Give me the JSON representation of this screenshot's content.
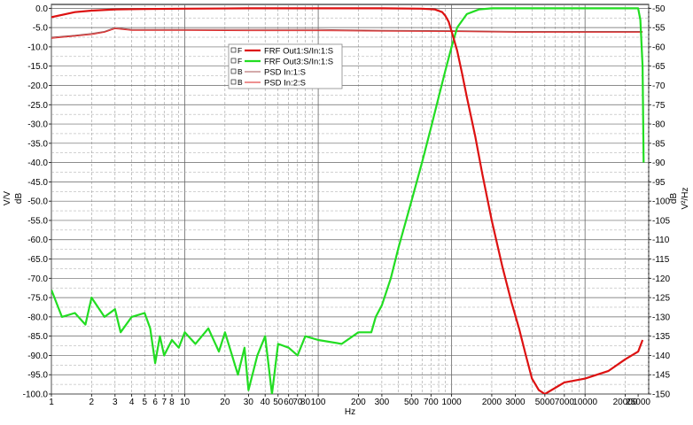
{
  "chart_data": {
    "type": "line",
    "x_scale": "log",
    "y_scale_left": "linear",
    "y_scale_right": "linear",
    "grid": true,
    "legend_position": "top-left inside plot",
    "xlabel": "Hz",
    "ylabel_left_units": "V/V",
    "ylabel_left_db": "dB",
    "ylabel_right_db": "dB",
    "ylabel_right_units": "V²/Hz",
    "xlim": [
      1,
      30000
    ],
    "ylim_left": [
      -100,
      1
    ],
    "ylim_right": [
      -150,
      -49
    ],
    "x_ticks": [
      1,
      2,
      3,
      4,
      5,
      6,
      7,
      8,
      10,
      20,
      30,
      40,
      50,
      60,
      70,
      80,
      100,
      200,
      300,
      500,
      700,
      1000,
      2000,
      3000,
      5000,
      7000,
      10000,
      20000,
      25000
    ],
    "x_tick_labels": [
      "1",
      "2",
      "3",
      "4",
      "5",
      "6",
      "7",
      "8",
      "10",
      "20",
      "30",
      "40",
      "50",
      "60",
      "70",
      "80",
      "100",
      "200",
      "300",
      "500",
      "700",
      "1000",
      "2000",
      "3000",
      "5000",
      "7000",
      "10000",
      "20000",
      "25000"
    ],
    "y_left_tick_labels": [
      "0.0",
      "-5.0",
      "-10.0",
      "-15.0",
      "-20.0",
      "-25.0",
      "-30.0",
      "-35.0",
      "-40.0",
      "-45.0",
      "-50.0",
      "-55.0",
      "-60.0",
      "-65.0",
      "-70.0",
      "-75.0",
      "-80.0",
      "-85.0",
      "-90.0",
      "-95.0",
      "-100.0"
    ],
    "y_right_tick_labels": [
      "-50",
      "-55",
      "-60",
      "-65",
      "-70",
      "-75",
      "-80",
      "-85",
      "-90",
      "-95",
      "-100",
      "-105",
      "-110",
      "-115",
      "-120",
      "-125",
      "-130",
      "-135",
      "-140",
      "-145",
      "-150"
    ],
    "legend": [
      {
        "flag": "F",
        "name": "FRF Out1:S/In:1:S",
        "color": "#dd1111",
        "style": "thick"
      },
      {
        "flag": "F",
        "name": "FRF Out3:S/In:1:S",
        "color": "#22dd22",
        "style": "thick"
      },
      {
        "flag": "B",
        "name": "PSD In:1:S",
        "color": "#aa5555",
        "style": "thin"
      },
      {
        "flag": "B",
        "name": "PSD In:2:S",
        "color": "#dd2222",
        "style": "thin"
      }
    ],
    "series": [
      {
        "name": "FRF Out1:S/In:1:S",
        "axis": "left",
        "color": "#dd1111",
        "points": [
          [
            1,
            -2.3
          ],
          [
            1.5,
            -1.0
          ],
          [
            2,
            -0.6
          ],
          [
            3,
            -0.3
          ],
          [
            5,
            -0.2
          ],
          [
            10,
            -0.1
          ],
          [
            30,
            0
          ],
          [
            100,
            0
          ],
          [
            300,
            0
          ],
          [
            600,
            -0.1
          ],
          [
            750,
            -0.3
          ],
          [
            850,
            -1.0
          ],
          [
            900,
            -2.0
          ],
          [
            950,
            -3.5
          ],
          [
            1000,
            -6.0
          ],
          [
            1100,
            -11
          ],
          [
            1200,
            -17
          ],
          [
            1300,
            -23
          ],
          [
            1500,
            -33
          ],
          [
            1700,
            -43
          ],
          [
            2000,
            -55
          ],
          [
            2400,
            -67
          ],
          [
            2800,
            -76
          ],
          [
            3200,
            -83
          ],
          [
            3600,
            -90
          ],
          [
            4000,
            -96
          ],
          [
            4500,
            -99
          ],
          [
            5000,
            -100
          ],
          [
            7000,
            -97
          ],
          [
            10000,
            -96
          ],
          [
            15000,
            -94
          ],
          [
            20000,
            -91
          ],
          [
            25000,
            -89
          ],
          [
            27000,
            -86
          ]
        ]
      },
      {
        "name": "FRF Out3:S/In:1:S",
        "axis": "left",
        "color": "#22dd22",
        "points": [
          [
            1,
            -73
          ],
          [
            1.2,
            -80
          ],
          [
            1.5,
            -79
          ],
          [
            1.8,
            -82
          ],
          [
            2,
            -75
          ],
          [
            2.5,
            -80
          ],
          [
            3,
            -78
          ],
          [
            3.3,
            -84
          ],
          [
            4,
            -80
          ],
          [
            5,
            -79
          ],
          [
            5.5,
            -83
          ],
          [
            6,
            -92
          ],
          [
            6.5,
            -85
          ],
          [
            7,
            -90
          ],
          [
            8,
            -86
          ],
          [
            9,
            -88
          ],
          [
            10,
            -84
          ],
          [
            12,
            -87
          ],
          [
            15,
            -83
          ],
          [
            18,
            -89
          ],
          [
            20,
            -84
          ],
          [
            25,
            -95
          ],
          [
            28,
            -88
          ],
          [
            30,
            -99
          ],
          [
            35,
            -90
          ],
          [
            40,
            -85
          ],
          [
            45,
            -100
          ],
          [
            50,
            -87
          ],
          [
            60,
            -88
          ],
          [
            70,
            -90
          ],
          [
            80,
            -85
          ],
          [
            100,
            -86
          ],
          [
            150,
            -87
          ],
          [
            200,
            -84
          ],
          [
            250,
            -84
          ],
          [
            270,
            -80
          ],
          [
            300,
            -77
          ],
          [
            350,
            -70
          ],
          [
            400,
            -62
          ],
          [
            500,
            -50
          ],
          [
            600,
            -40
          ],
          [
            700,
            -31
          ],
          [
            800,
            -23
          ],
          [
            900,
            -16
          ],
          [
            1000,
            -10
          ],
          [
            1100,
            -5
          ],
          [
            1300,
            -1.5
          ],
          [
            1600,
            -0.3
          ],
          [
            2000,
            0
          ],
          [
            5000,
            0
          ],
          [
            10000,
            0
          ],
          [
            20000,
            0
          ],
          [
            25000,
            0
          ],
          [
            26000,
            -3
          ],
          [
            27000,
            -15
          ],
          [
            27500,
            -40
          ]
        ]
      },
      {
        "name": "PSD In:1:S",
        "axis": "right",
        "color": "#aa5555",
        "points": [
          [
            1,
            -57.5
          ],
          [
            1.5,
            -57
          ],
          [
            2,
            -56.5
          ],
          [
            2.5,
            -56
          ],
          [
            3,
            -55
          ],
          [
            4,
            -55.5
          ],
          [
            5,
            -55.5
          ],
          [
            10,
            -55.5
          ],
          [
            30,
            -55.5
          ],
          [
            100,
            -55.5
          ],
          [
            300,
            -55.7
          ],
          [
            1000,
            -55.8
          ],
          [
            3000,
            -56
          ],
          [
            10000,
            -56
          ],
          [
            27000,
            -56
          ]
        ]
      },
      {
        "name": "PSD In:2:S",
        "axis": "right",
        "color": "#dd2222",
        "points": [
          [
            1,
            -57.8
          ],
          [
            1.5,
            -57.2
          ],
          [
            2,
            -56.8
          ],
          [
            2.5,
            -56.2
          ],
          [
            3,
            -55.3
          ],
          [
            4,
            -55.7
          ],
          [
            5,
            -55.7
          ],
          [
            10,
            -55.7
          ],
          [
            30,
            -55.8
          ],
          [
            100,
            -55.8
          ],
          [
            300,
            -55.9
          ],
          [
            1000,
            -56
          ],
          [
            3000,
            -56.2
          ],
          [
            10000,
            -56.2
          ],
          [
            27000,
            -56.2
          ]
        ]
      }
    ]
  }
}
